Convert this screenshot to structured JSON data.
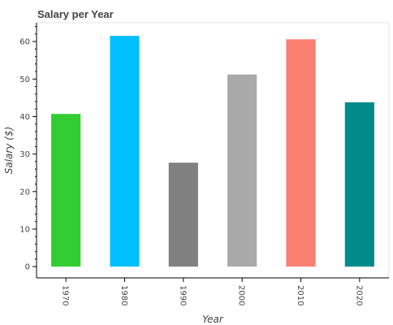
{
  "chart_data": {
    "type": "bar",
    "title": "Salary per Year",
    "xlabel": "Year",
    "ylabel": "Salary ($)",
    "categories": [
      "1970",
      "1980",
      "1990",
      "2000",
      "2010",
      "2020"
    ],
    "values": [
      40.7,
      61.5,
      27.7,
      51.2,
      60.6,
      43.8
    ],
    "colors": [
      "#32cd32",
      "#00bfff",
      "#808080",
      "#a9a9a9",
      "#fa8072",
      "#008b8b"
    ],
    "yticks": [
      0,
      10,
      20,
      30,
      40,
      50,
      60
    ],
    "ylim": [
      -3,
      65
    ],
    "grid": false,
    "x_tick_rotation": "rotated 90 degrees clockwise"
  }
}
